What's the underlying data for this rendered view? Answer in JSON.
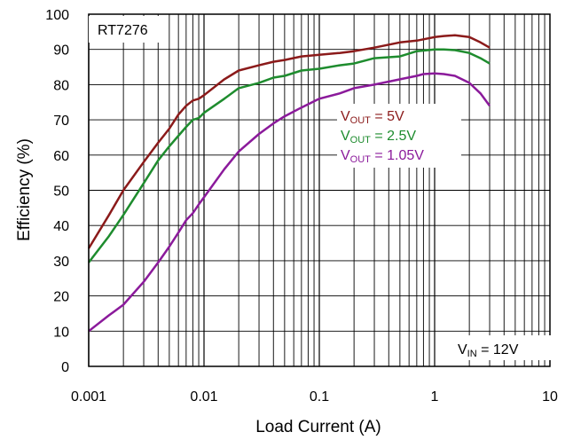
{
  "chart_data": {
    "type": "line",
    "title": "",
    "xlabel": "Load Current (A)",
    "ylabel": "Efficiency (%)",
    "xscale": "log",
    "xlim": [
      0.001,
      10
    ],
    "ylim": [
      0,
      100
    ],
    "x_ticks": [
      "0.001",
      "0.01",
      "0.1",
      "1",
      "10"
    ],
    "y_ticks": [
      "0",
      "10",
      "20",
      "30",
      "40",
      "50",
      "60",
      "70",
      "80",
      "90",
      "100"
    ],
    "grid": true,
    "device_label": "RT7276",
    "vin_annotation": {
      "main": "V",
      "sub": "IN",
      "rest": " = 12V"
    },
    "legend_position": "center-right",
    "series": [
      {
        "name": "VOUT = 5V",
        "legend": {
          "main": "V",
          "sub": "OUT",
          "rest": " = 5V"
        },
        "color": "#8b1a1a",
        "x": [
          0.001,
          0.0015,
          0.002,
          0.003,
          0.004,
          0.005,
          0.006,
          0.007,
          0.008,
          0.009,
          0.01,
          0.015,
          0.02,
          0.03,
          0.04,
          0.05,
          0.07,
          0.1,
          0.15,
          0.2,
          0.3,
          0.5,
          0.7,
          1.0,
          1.2,
          1.5,
          2.0,
          2.5,
          3.0
        ],
        "y": [
          33.5,
          43,
          50,
          58,
          63.5,
          67.5,
          71.5,
          74,
          75.5,
          76,
          77,
          81.5,
          84,
          85.5,
          86.5,
          87,
          88,
          88.5,
          89,
          89.5,
          90.5,
          92,
          92.5,
          93.5,
          93.8,
          94,
          93.5,
          92,
          90.5
        ]
      },
      {
        "name": "VOUT = 2.5V",
        "legend": {
          "main": "V",
          "sub": "OUT",
          "rest": " = 2.5V"
        },
        "color": "#1e8c2e",
        "x": [
          0.001,
          0.0015,
          0.002,
          0.003,
          0.004,
          0.005,
          0.006,
          0.007,
          0.008,
          0.009,
          0.01,
          0.015,
          0.02,
          0.03,
          0.04,
          0.05,
          0.07,
          0.1,
          0.15,
          0.2,
          0.3,
          0.5,
          0.7,
          1.0,
          1.2,
          1.5,
          2.0,
          2.5,
          3.0
        ],
        "y": [
          29.5,
          37,
          43,
          52,
          58.5,
          62.5,
          65.5,
          68,
          70,
          70.5,
          72,
          76,
          79,
          80.5,
          82,
          82.5,
          84,
          84.5,
          85.5,
          86,
          87.5,
          88,
          89.5,
          90,
          90,
          89.8,
          89,
          87.5,
          86
        ]
      },
      {
        "name": "VOUT = 1.05V",
        "legend": {
          "main": "V",
          "sub": "OUT",
          "rest": " = 1.05V"
        },
        "color": "#8b1a9b",
        "x": [
          0.001,
          0.0015,
          0.002,
          0.003,
          0.004,
          0.005,
          0.006,
          0.007,
          0.008,
          0.009,
          0.01,
          0.015,
          0.02,
          0.03,
          0.04,
          0.05,
          0.07,
          0.1,
          0.15,
          0.2,
          0.3,
          0.5,
          0.7,
          0.8,
          1.0,
          1.2,
          1.5,
          2.0,
          2.5,
          3.0
        ],
        "y": [
          10,
          14.5,
          17.5,
          24,
          29.5,
          34,
          38,
          41.5,
          43.5,
          46,
          48,
          56,
          61,
          66,
          69,
          71,
          73.5,
          76,
          77.5,
          79,
          80,
          81.5,
          82.5,
          83,
          83.2,
          83,
          82.5,
          80.5,
          77.5,
          74
        ]
      }
    ]
  }
}
